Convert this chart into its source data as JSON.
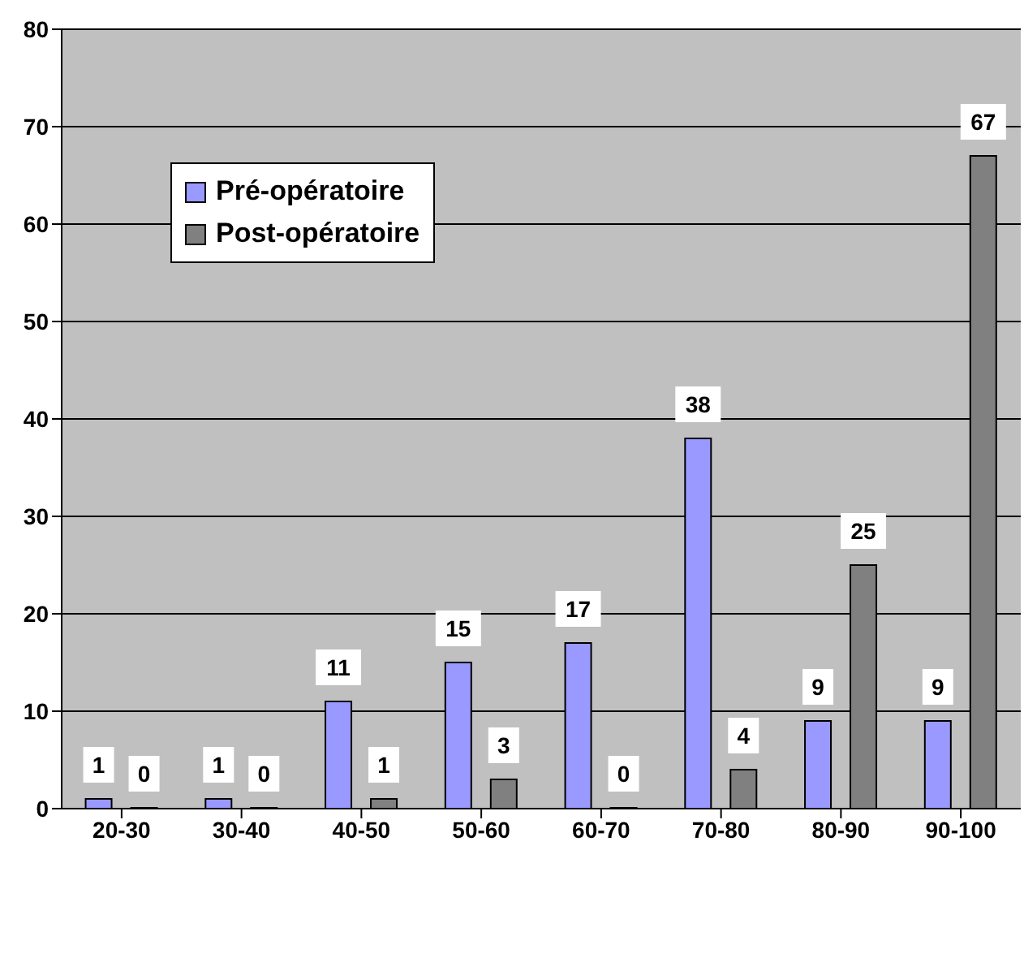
{
  "chart_data": {
    "type": "bar",
    "categories": [
      "20-30",
      "30-40",
      "40-50",
      "50-60",
      "60-70",
      "70-80",
      "80-90",
      "90-100"
    ],
    "series": [
      {
        "name": "Pré-opératoire",
        "color": "#9999ff",
        "values": [
          1,
          1,
          11,
          15,
          17,
          38,
          9,
          9
        ]
      },
      {
        "name": "Post-opératoire",
        "color": "#808080",
        "values": [
          0,
          0,
          1,
          3,
          0,
          4,
          25,
          67
        ]
      }
    ],
    "ylim": [
      0,
      80
    ],
    "yticks": [
      0,
      10,
      20,
      30,
      40,
      50,
      60,
      70,
      80
    ],
    "grid": "y",
    "legend": "top left",
    "data_labels": true
  }
}
